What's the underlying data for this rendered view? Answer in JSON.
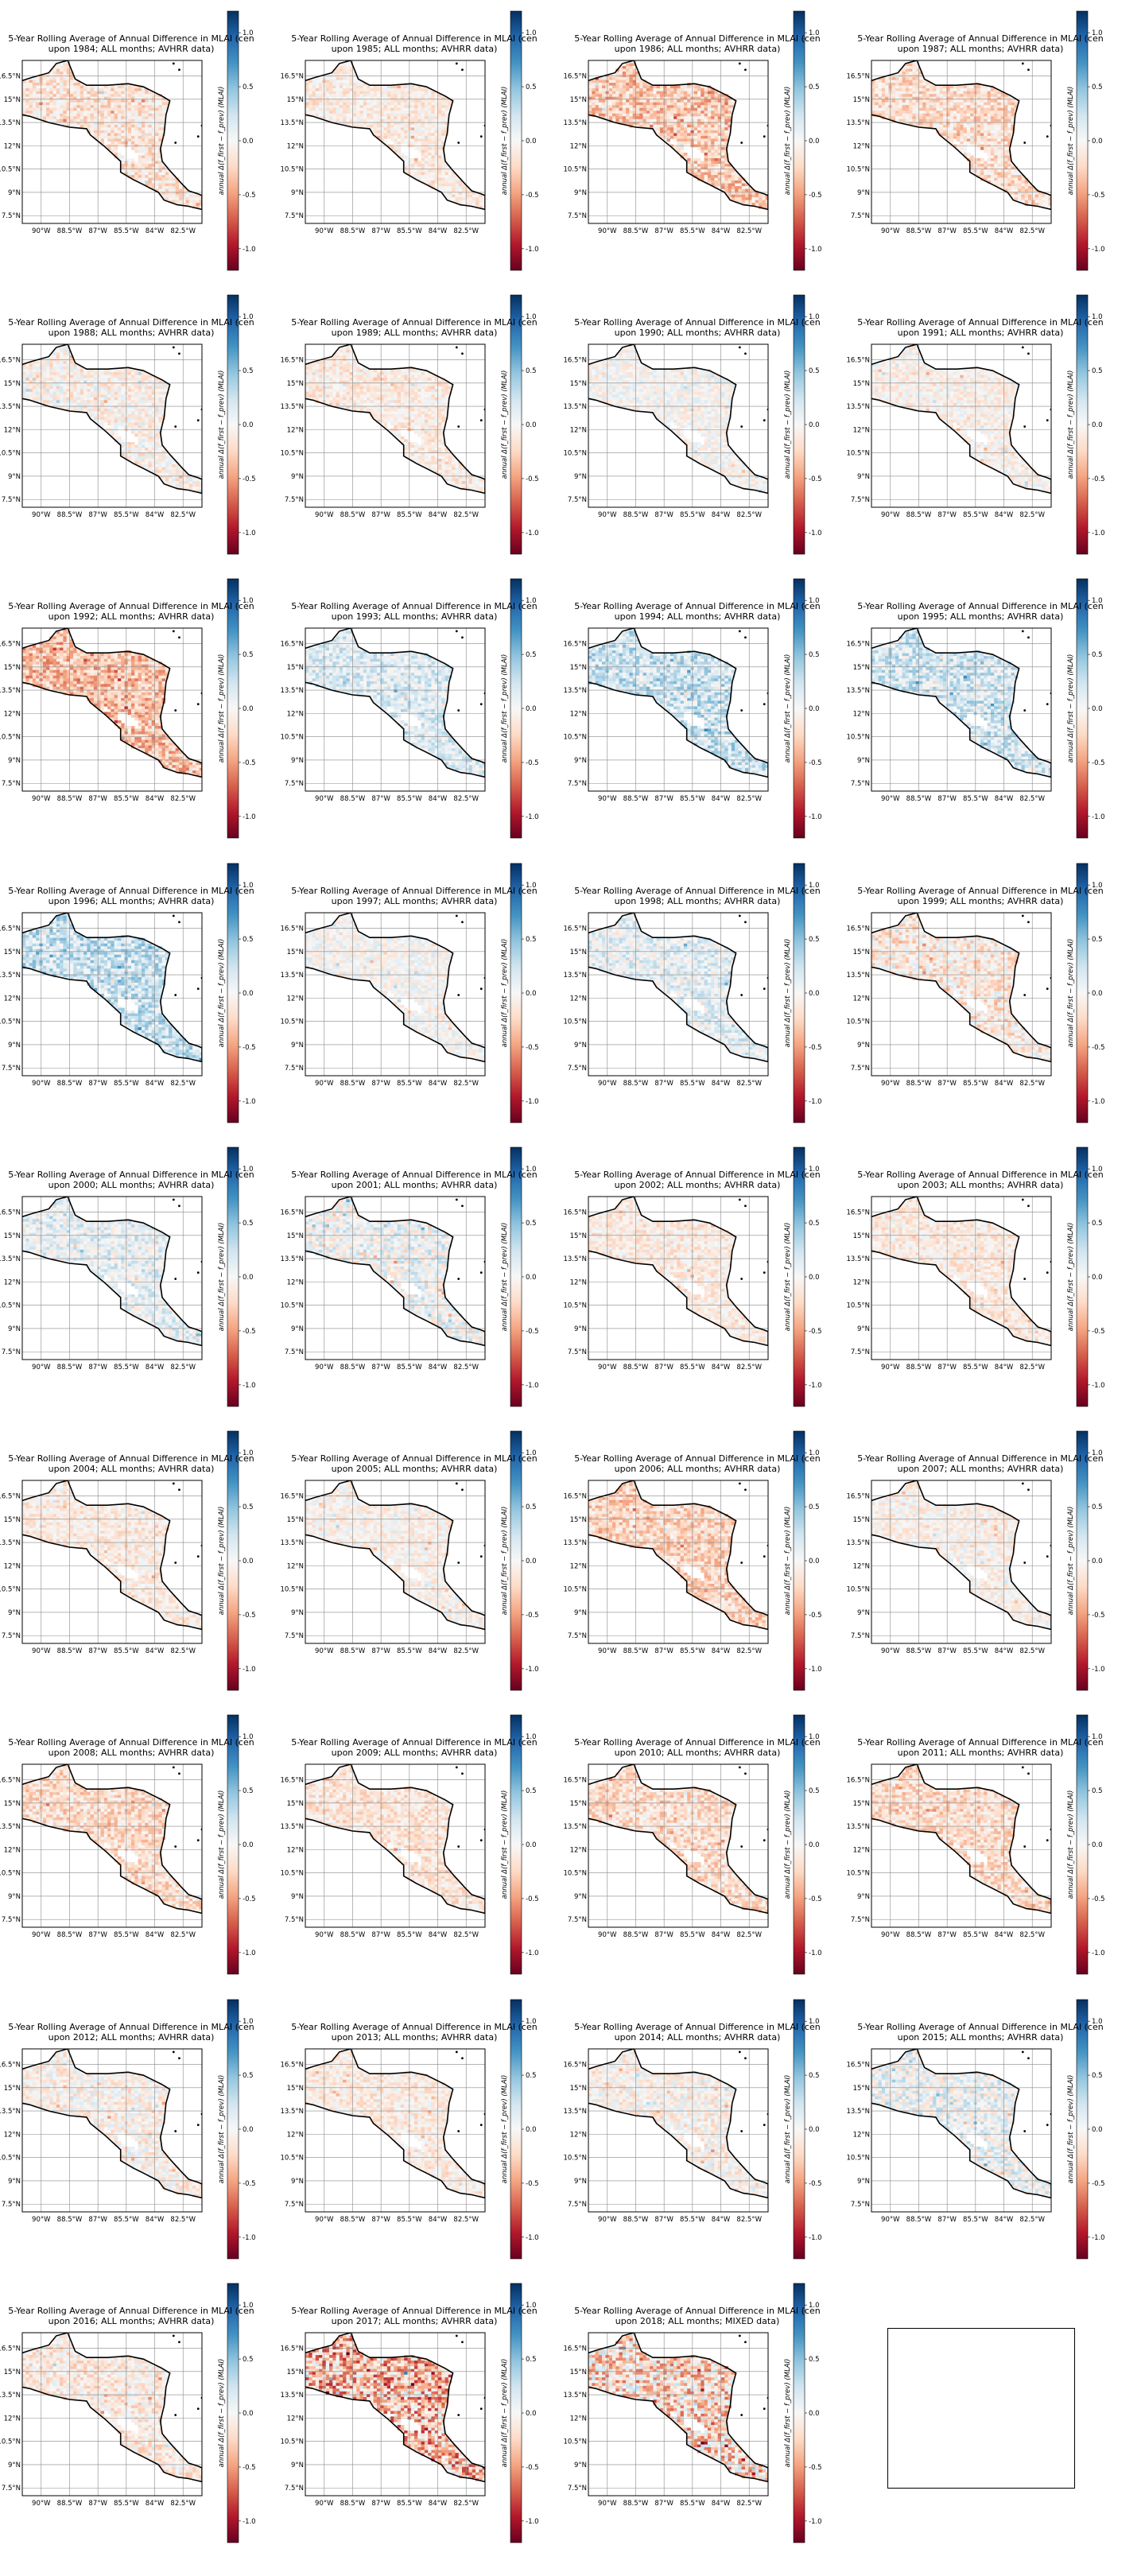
{
  "figure": {
    "title_prefix": "5-Year Rolling Average of Annual Difference in MLAI (cen",
    "xtick_labels": [
      "90°W",
      "88.5°W",
      "87°W",
      "85.5°W",
      "84°W",
      "82.5°W"
    ],
    "ytick_labels": [
      "16.5°N",
      "15°N",
      "13.5°N",
      "12°N",
      "10.5°N",
      "9°N",
      "7.5°N"
    ],
    "colorbar_ticks": [
      "1.0",
      "0.5",
      "0.0",
      "-0.5",
      "-1.0"
    ],
    "colorbar_label": "annual Δ(f_first − f_prev) (MLAI)",
    "colormap": [
      "#67001f",
      "#b2182b",
      "#d6604d",
      "#f4a582",
      "#fddbc7",
      "#f7f7f7",
      "#d1e5f0",
      "#92c5de",
      "#4393c3",
      "#2166ac",
      "#053061"
    ]
  },
  "chart_data": {
    "type": "heatmap",
    "title": "5-Year Rolling Average of Annual Difference in MLAI",
    "xlim": [
      -91,
      -81.5
    ],
    "ylim": [
      7,
      17.5
    ],
    "clim": [
      -1.2,
      1.2
    ],
    "grid": true,
    "panels": [
      {
        "year": "1984",
        "data": "AVHRR",
        "line2": "upon 1984; ALL months; AVHRR data)",
        "bias": -0.15,
        "intensity": 0.25
      },
      {
        "year": "1985",
        "data": "AVHRR",
        "line2": "upon 1985; ALL months; AVHRR data)",
        "bias": -0.1,
        "intensity": 0.2
      },
      {
        "year": "1986",
        "data": "AVHRR",
        "line2": "upon 1986; ALL months; AVHRR data)",
        "bias": -0.3,
        "intensity": 0.3
      },
      {
        "year": "1987",
        "data": "AVHRR",
        "line2": "upon 1987; ALL months; AVHRR data)",
        "bias": -0.2,
        "intensity": 0.25
      },
      {
        "year": "1988",
        "data": "AVHRR",
        "line2": "upon 1988; ALL months; AVHRR data)",
        "bias": -0.05,
        "intensity": 0.25
      },
      {
        "year": "1989",
        "data": "AVHRR",
        "line2": "upon 1989; ALL months; AVHRR data)",
        "bias": -0.1,
        "intensity": 0.2
      },
      {
        "year": "1990",
        "data": "AVHRR",
        "line2": "upon 1990; ALL months; AVHRR data)",
        "bias": 0.0,
        "intensity": 0.2
      },
      {
        "year": "1991",
        "data": "AVHRR",
        "line2": "upon 1991; ALL months; AVHRR data)",
        "bias": -0.05,
        "intensity": 0.2
      },
      {
        "year": "1992",
        "data": "AVHRR",
        "line2": "upon 1992; ALL months; AVHRR data)",
        "bias": -0.35,
        "intensity": 0.3
      },
      {
        "year": "1993",
        "data": "AVHRR",
        "line2": "upon 1993; ALL months; AVHRR data)",
        "bias": 0.15,
        "intensity": 0.25
      },
      {
        "year": "1994",
        "data": "AVHRR",
        "line2": "upon 1994; ALL months; AVHRR data)",
        "bias": 0.25,
        "intensity": 0.3
      },
      {
        "year": "1995",
        "data": "AVHRR",
        "line2": "upon 1995; ALL months; AVHRR data)",
        "bias": 0.2,
        "intensity": 0.3
      },
      {
        "year": "1996",
        "data": "AVHRR",
        "line2": "upon 1996; ALL months; AVHRR data)",
        "bias": 0.25,
        "intensity": 0.3
      },
      {
        "year": "1997",
        "data": "AVHRR",
        "line2": "upon 1997; ALL months; AVHRR data)",
        "bias": 0.0,
        "intensity": 0.2
      },
      {
        "year": "1998",
        "data": "AVHRR",
        "line2": "upon 1998; ALL months; AVHRR data)",
        "bias": 0.1,
        "intensity": 0.25
      },
      {
        "year": "1999",
        "data": "AVHRR",
        "line2": "upon 1999; ALL months; AVHRR data)",
        "bias": -0.1,
        "intensity": 0.3
      },
      {
        "year": "2000",
        "data": "AVHRR",
        "line2": "upon 2000; ALL months; AVHRR data)",
        "bias": 0.1,
        "intensity": 0.25
      },
      {
        "year": "2001",
        "data": "AVHRR",
        "line2": "upon 2001; ALL months; AVHRR data)",
        "bias": 0.05,
        "intensity": 0.3
      },
      {
        "year": "2002",
        "data": "AVHRR",
        "line2": "upon 2002; ALL months; AVHRR data)",
        "bias": -0.1,
        "intensity": 0.2
      },
      {
        "year": "2003",
        "data": "AVHRR",
        "line2": "upon 2003; ALL months; AVHRR data)",
        "bias": -0.1,
        "intensity": 0.2
      },
      {
        "year": "2004",
        "data": "AVHRR",
        "line2": "upon 2004; ALL months; AVHRR data)",
        "bias": -0.1,
        "intensity": 0.2
      },
      {
        "year": "2005",
        "data": "AVHRR",
        "line2": "upon 2005; ALL months; AVHRR data)",
        "bias": -0.05,
        "intensity": 0.2
      },
      {
        "year": "2006",
        "data": "AVHRR",
        "line2": "upon 2006; ALL months; AVHRR data)",
        "bias": -0.25,
        "intensity": 0.25
      },
      {
        "year": "2007",
        "data": "AVHRR",
        "line2": "upon 2007; ALL months; AVHRR data)",
        "bias": -0.05,
        "intensity": 0.2
      },
      {
        "year": "2008",
        "data": "AVHRR",
        "line2": "upon 2008; ALL months; AVHRR data)",
        "bias": -0.2,
        "intensity": 0.25
      },
      {
        "year": "2009",
        "data": "AVHRR",
        "line2": "upon 2009; ALL months; AVHRR data)",
        "bias": -0.15,
        "intensity": 0.2
      },
      {
        "year": "2010",
        "data": "AVHRR",
        "line2": "upon 2010; ALL months; AVHRR data)",
        "bias": -0.2,
        "intensity": 0.25
      },
      {
        "year": "2011",
        "data": "AVHRR",
        "line2": "upon 2011; ALL months; AVHRR data)",
        "bias": -0.2,
        "intensity": 0.25
      },
      {
        "year": "2012",
        "data": "AVHRR",
        "line2": "upon 2012; ALL months; AVHRR data)",
        "bias": -0.05,
        "intensity": 0.25
      },
      {
        "year": "2013",
        "data": "AVHRR",
        "line2": "upon 2013; ALL months; AVHRR data)",
        "bias": -0.1,
        "intensity": 0.2
      },
      {
        "year": "2014",
        "data": "AVHRR",
        "line2": "upon 2014; ALL months; AVHRR data)",
        "bias": -0.05,
        "intensity": 0.25
      },
      {
        "year": "2015",
        "data": "AVHRR",
        "line2": "upon 2015; ALL months; AVHRR data)",
        "bias": 0.05,
        "intensity": 0.3
      },
      {
        "year": "2016",
        "data": "AVHRR",
        "line2": "upon 2016; ALL months; AVHRR data)",
        "bias": -0.1,
        "intensity": 0.25
      },
      {
        "year": "2017",
        "data": "AVHRR",
        "line2": "upon 2017; ALL months; AVHRR data)",
        "bias": -0.35,
        "intensity": 0.55
      },
      {
        "year": "2018",
        "data": "MIXED",
        "line2": "upon 2018; ALL months; MIXED data)",
        "bias": -0.2,
        "intensity": 0.5
      }
    ],
    "empty_panel": true
  }
}
